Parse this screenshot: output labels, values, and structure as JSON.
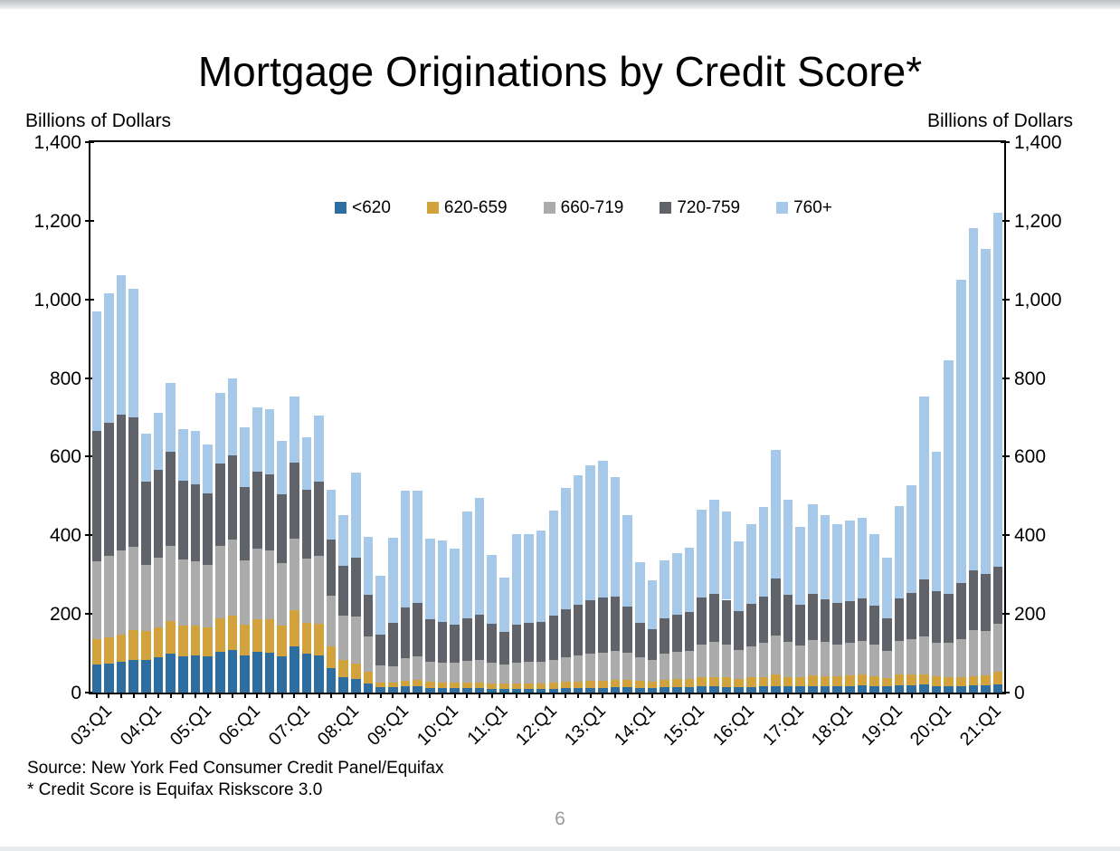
{
  "header": {
    "title": "Mortgage Originations by Credit Score*"
  },
  "axes": {
    "y_label_left": "Billions of Dollars",
    "y_label_right": "Billions of Dollars"
  },
  "footer": {
    "source_line_1": "Source: New York Fed Consumer Credit Panel/Equifax",
    "source_line_2": "* Credit Score is Equifax Riskscore 3.0",
    "page_number": "6"
  },
  "chart_data": {
    "type": "bar",
    "stacked": true,
    "title": "Mortgage Originations by Credit Score*",
    "xlabel": "",
    "ylabel": "Billions of Dollars",
    "ylim": [
      0,
      1400
    ],
    "y_ticks": [
      0,
      200,
      400,
      600,
      800,
      1000,
      1200,
      1400
    ],
    "grid": false,
    "legend_position": "top-center",
    "categories": [
      "03:Q1",
      "03:Q2",
      "03:Q3",
      "03:Q4",
      "04:Q1",
      "04:Q2",
      "04:Q3",
      "04:Q4",
      "05:Q1",
      "05:Q2",
      "05:Q3",
      "05:Q4",
      "06:Q1",
      "06:Q2",
      "06:Q3",
      "06:Q4",
      "07:Q1",
      "07:Q2",
      "07:Q3",
      "07:Q4",
      "08:Q1",
      "08:Q2",
      "08:Q3",
      "08:Q4",
      "09:Q1",
      "09:Q2",
      "09:Q3",
      "09:Q4",
      "10:Q1",
      "10:Q2",
      "10:Q3",
      "10:Q4",
      "11:Q1",
      "11:Q2",
      "11:Q3",
      "11:Q4",
      "12:Q1",
      "12:Q2",
      "12:Q3",
      "12:Q4",
      "13:Q1",
      "13:Q2",
      "13:Q3",
      "13:Q4",
      "14:Q1",
      "14:Q2",
      "14:Q3",
      "14:Q4",
      "15:Q1",
      "15:Q2",
      "15:Q3",
      "15:Q4",
      "16:Q1",
      "16:Q2",
      "16:Q3",
      "16:Q4",
      "17:Q1",
      "17:Q2",
      "17:Q3",
      "17:Q4",
      "18:Q1",
      "18:Q2",
      "18:Q3",
      "18:Q4",
      "19:Q1",
      "19:Q2",
      "19:Q3",
      "19:Q4",
      "20:Q1",
      "20:Q2",
      "20:Q3",
      "20:Q4",
      "21:Q1",
      "21:Q2"
    ],
    "x_tick_labels": [
      "03:Q1",
      "04:Q1",
      "05:Q1",
      "06:Q1",
      "07:Q1",
      "08:Q1",
      "09:Q1",
      "10:Q1",
      "11:Q1",
      "12:Q1",
      "13:Q1",
      "14:Q1",
      "15:Q1",
      "16:Q1",
      "17:Q1",
      "18:Q1",
      "19:Q1",
      "20:Q1",
      "21:Q1"
    ],
    "series": [
      {
        "name": "<620",
        "color": "#2E6D9F",
        "values": [
          71,
          74,
          78,
          84,
          84,
          90,
          99,
          93,
          94,
          92,
          104,
          108,
          94,
          103,
          102,
          93,
          118,
          98,
          95,
          62,
          40,
          34,
          24,
          14,
          13,
          15,
          15,
          12,
          11,
          11,
          11,
          11,
          10,
          10,
          10,
          10,
          10,
          10,
          11,
          11,
          12,
          12,
          13,
          13,
          12,
          11,
          13,
          13,
          13,
          15,
          15,
          14,
          13,
          14,
          15,
          17,
          15,
          15,
          17,
          16,
          16,
          17,
          18,
          17,
          15,
          19,
          19,
          20,
          17,
          16,
          16,
          18,
          18,
          21
        ]
      },
      {
        "name": "620-659",
        "color": "#D2A33C",
        "values": [
          64,
          66,
          69,
          74,
          72,
          76,
          83,
          78,
          76,
          74,
          84,
          88,
          79,
          84,
          84,
          78,
          92,
          80,
          80,
          56,
          44,
          40,
          30,
          12,
          12,
          16,
          18,
          15,
          14,
          14,
          14,
          15,
          14,
          13,
          14,
          14,
          14,
          15,
          16,
          17,
          18,
          19,
          20,
          20,
          18,
          17,
          20,
          21,
          21,
          24,
          25,
          24,
          22,
          24,
          25,
          28,
          25,
          24,
          27,
          26,
          25,
          26,
          27,
          25,
          22,
          27,
          27,
          26,
          24,
          22,
          22,
          24,
          26,
          31
        ]
      },
      {
        "name": "660-719",
        "color": "#ABABAB",
        "values": [
          200,
          208,
          215,
          212,
          168,
          178,
          192,
          168,
          164,
          158,
          184,
          192,
          164,
          178,
          176,
          158,
          182,
          162,
          172,
          128,
          112,
          120,
          88,
          42,
          42,
          56,
          60,
          52,
          50,
          50,
          55,
          58,
          52,
          48,
          52,
          54,
          54,
          58,
          62,
          66,
          68,
          70,
          72,
          68,
          60,
          56,
          66,
          70,
          72,
          84,
          88,
          84,
          74,
          80,
          86,
          100,
          88,
          80,
          90,
          86,
          82,
          84,
          86,
          80,
          68,
          86,
          90,
          96,
          86,
          88,
          98,
          118,
          112,
          122
        ]
      },
      {
        "name": "720-759",
        "color": "#60646A",
        "values": [
          330,
          338,
          345,
          330,
          212,
          222,
          238,
          200,
          196,
          182,
          210,
          216,
          186,
          196,
          192,
          176,
          192,
          176,
          190,
          144,
          126,
          150,
          106,
          80,
          110,
          130,
          135,
          108,
          105,
          98,
          108,
          115,
          98,
          84,
          96,
          100,
          102,
          112,
          122,
          130,
          136,
          140,
          138,
          118,
          88,
          78,
          90,
          94,
          98,
          118,
          122,
          114,
          98,
          108,
          118,
          146,
          120,
          104,
          116,
          110,
          104,
          106,
          108,
          98,
          84,
          108,
          118,
          146,
          130,
          124,
          142,
          152,
          146,
          146
        ]
      },
      {
        "name": "760+",
        "color": "#A7C9E9",
        "values": [
          304,
          329,
          355,
          326,
          123,
          146,
          175,
          131,
          135,
          126,
          180,
          196,
          152,
          165,
          167,
          134,
          168,
          133,
          168,
          125,
          130,
          215,
          148,
          150,
          217,
          297,
          286,
          204,
          207,
          192,
          272,
          297,
          177,
          137,
          232,
          226,
          232,
          268,
          310,
          329,
          344,
          348,
          306,
          233,
          154,
          124,
          148,
          157,
          165,
          225,
          241,
          224,
          177,
          202,
          227,
          326,
          243,
          198,
          229,
          214,
          201,
          204,
          206,
          182,
          155,
          234,
          274,
          464,
          355,
          596,
          771,
          870,
          827,
          900
        ]
      }
    ]
  }
}
